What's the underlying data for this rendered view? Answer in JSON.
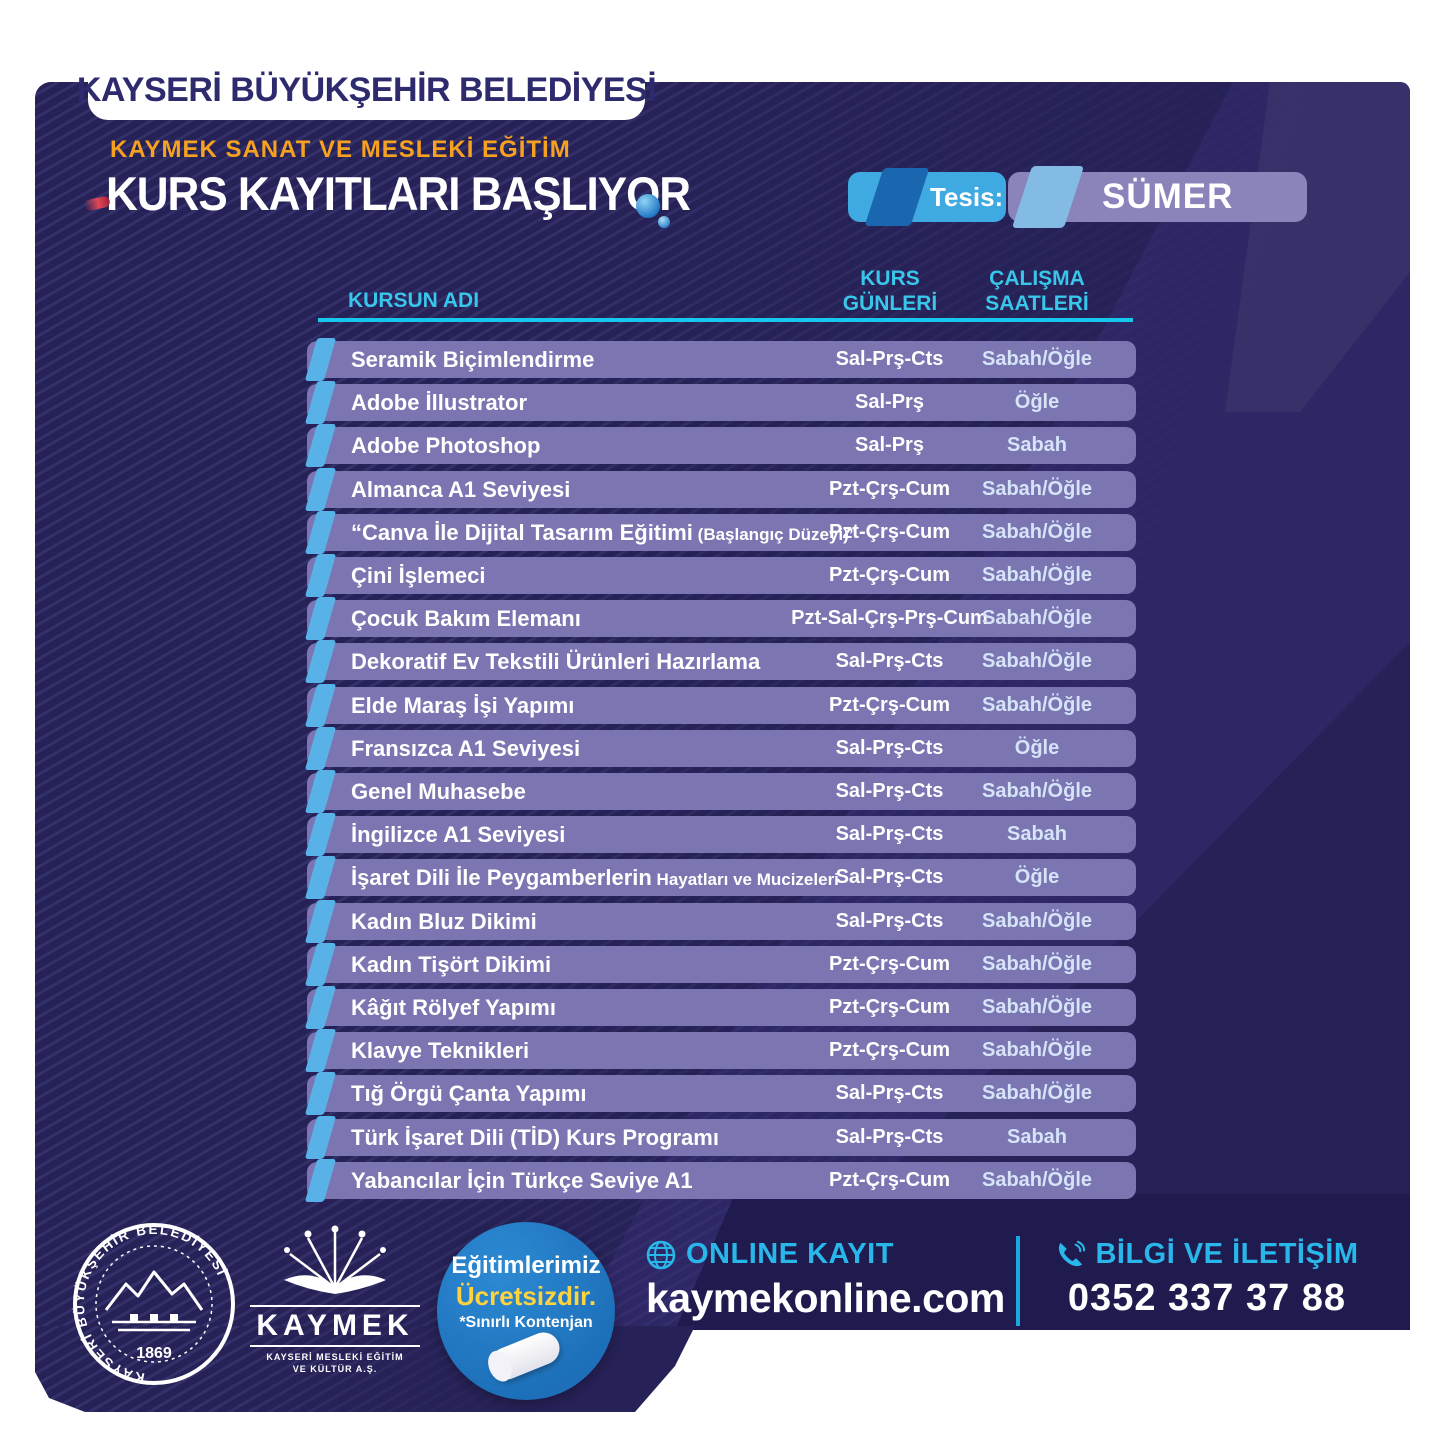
{
  "header": {
    "municipality": "KAYSERİ BÜYÜKŞEHİR BELEDİYESİ",
    "subtitle": "KAYMEK SANAT VE MESLEKİ EĞİTİM",
    "title": "KURS KAYITLARI BAŞLIYOR",
    "facility_label": "Tesis:",
    "facility_name": "SÜMER"
  },
  "table": {
    "columns": {
      "name": "KURSUN ADI",
      "days": "KURS GÜNLERİ",
      "hours": "ÇALIŞMA SAATLERİ"
    },
    "rows": [
      {
        "name": "Seramik Biçimlendirme",
        "note": "",
        "days": "Sal-Prş-Cts",
        "hours": "Sabah/Öğle"
      },
      {
        "name": "Adobe İllustrator",
        "note": "",
        "days": "Sal-Prş",
        "hours": "Öğle"
      },
      {
        "name": "Adobe Photoshop",
        "note": "",
        "days": "Sal-Prş",
        "hours": "Sabah"
      },
      {
        "name": "Almanca A1 Seviyesi",
        "note": "",
        "days": "Pzt-Çrş-Cum",
        "hours": "Sabah/Öğle"
      },
      {
        "name": "“Canva İle Dijital Tasarım Eğitimi",
        "note": "(Başlangıç Düzeyi)”",
        "days": "Pzt-Çrş-Cum",
        "hours": "Sabah/Öğle"
      },
      {
        "name": "Çini İşlemeci",
        "note": "",
        "days": "Pzt-Çrş-Cum",
        "hours": "Sabah/Öğle"
      },
      {
        "name": "Çocuk Bakım Elemanı",
        "note": "",
        "days": "Pzt-Sal-Çrş-Prş-Cum",
        "hours": "Sabah/Öğle"
      },
      {
        "name": "Dekoratif Ev Tekstili Ürünleri Hazırlama",
        "note": "",
        "days": "Sal-Prş-Cts",
        "hours": "Sabah/Öğle"
      },
      {
        "name": "Elde Maraş İşi Yapımı",
        "note": "",
        "days": "Pzt-Çrş-Cum",
        "hours": "Sabah/Öğle"
      },
      {
        "name": "Fransızca A1 Seviyesi",
        "note": "",
        "days": "Sal-Prş-Cts",
        "hours": "Öğle"
      },
      {
        "name": "Genel Muhasebe",
        "note": "",
        "days": "Sal-Prş-Cts",
        "hours": "Sabah/Öğle"
      },
      {
        "name": "İngilizce A1 Seviyesi",
        "note": "",
        "days": "Sal-Prş-Cts",
        "hours": "Sabah"
      },
      {
        "name": "İşaret Dili İle Peygamberlerin",
        "note": "Hayatları ve Mucizeleri",
        "days": "Sal-Prş-Cts",
        "hours": "Öğle"
      },
      {
        "name": "Kadın Bluz Dikimi",
        "note": "",
        "days": "Sal-Prş-Cts",
        "hours": "Sabah/Öğle"
      },
      {
        "name": "Kadın Tişört Dikimi",
        "note": "",
        "days": "Pzt-Çrş-Cum",
        "hours": "Sabah/Öğle"
      },
      {
        "name": "Kâğıt Rölyef Yapımı",
        "note": "",
        "days": "Pzt-Çrş-Cum",
        "hours": "Sabah/Öğle"
      },
      {
        "name": "Klavye Teknikleri",
        "note": "",
        "days": "Pzt-Çrş-Cum",
        "hours": "Sabah/Öğle"
      },
      {
        "name": "Tığ Örgü Çanta Yapımı",
        "note": "",
        "days": "Sal-Prş-Cts",
        "hours": "Sabah/Öğle"
      },
      {
        "name": "Türk İşaret Dili (TİD) Kurs Programı",
        "note": "",
        "days": "Sal-Prş-Cts",
        "hours": "Sabah"
      },
      {
        "name": "Yabancılar İçin Türkçe Seviye A1",
        "note": "",
        "days": "Pzt-Çrş-Cum",
        "hours": "Sabah/Öğle"
      }
    ]
  },
  "footer": {
    "seal_text": "KAYSERİ BÜYÜKŞEHİR BELEDİYESİ",
    "seal_year": "1869",
    "kaymek": {
      "name": "KAYMEK",
      "sub1": "KAYSERİ MESLEKİ EĞİTİM",
      "sub2": "VE KÜLTÜR A.Ş."
    },
    "free_badge": {
      "line1": "Eğitimlerimiz",
      "line2": "Ücretsizdir.",
      "line3": "*Sınırlı Kontenjan"
    },
    "online": {
      "label": "ONLINE KAYIT",
      "url": "kaymekonline.com"
    },
    "contact": {
      "label": "BİLGİ VE İLETİŞİM",
      "phone": "0352 337 37 88"
    }
  },
  "colors": {
    "poster_bg": "#262156",
    "row_bg": "#7b75b1",
    "accent_blue": "#58b1e7",
    "cyan": "#38c6ea",
    "orange": "#f6a11f",
    "badge_blue": "#1c6fb8",
    "badge_yellow": "#ffd33d",
    "dark_text": "#2d2a6e"
  }
}
